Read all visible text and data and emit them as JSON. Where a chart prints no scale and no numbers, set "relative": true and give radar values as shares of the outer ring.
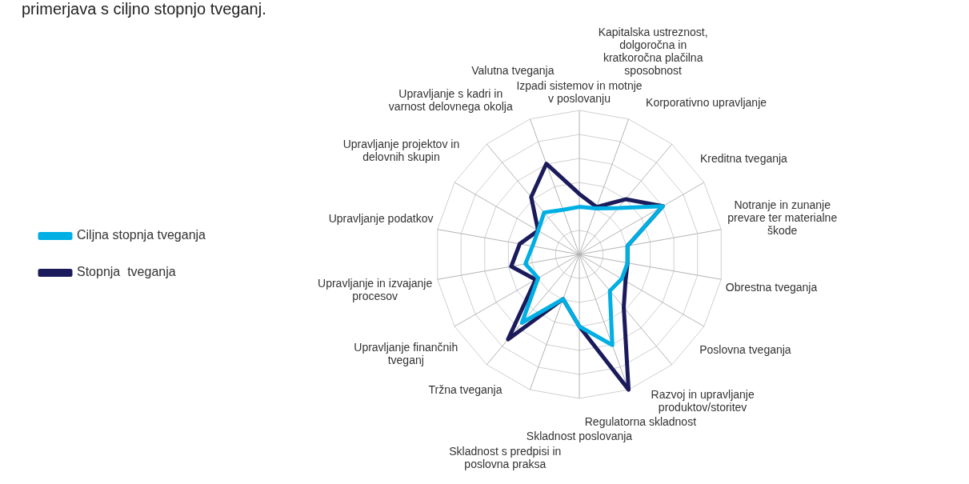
{
  "chart_data": {
    "type": "radar",
    "title": "primerjava s ciljno stopnjo tveganj.",
    "relative": true,
    "legend": "left",
    "grid": true,
    "marker": "none",
    "categories": [
      "Izpadi sistemov in motnje v poslovanju",
      "Kapitalska ustreznost, dolgoročna in kratkoročna plačilna sposobnost",
      "Korporativno upravljanje",
      "Kreditna tveganja",
      "Notranje in zunanje prevare ter materialne škode",
      "Obrestna tveganja",
      "Poslovna tveganja",
      "Razvoj in upravljanje produktov/storitev",
      "Regulatorna skladnost",
      "Skladnost poslovanja",
      "Skladnost s predpisi in poslovna praksa",
      "Tržna tveganja",
      "Upravljanje finančnih tveganj",
      "Upravljanje in izvajanje procesov",
      "Upravljanje podatkov",
      "Upravljanje projektov in delovnih skupin",
      "Upravljanje s kadri in varnost delovnega okolja",
      "Valutna tveganja"
    ],
    "series": [
      {
        "name": "Ciljna stopnja tveganja",
        "color": "#00afe3",
        "values": [
          0.33,
          0.34,
          0.42,
          0.67,
          0.34,
          0.34,
          0.34,
          0.33,
          0.67,
          0.5,
          0.33,
          0.62,
          0.33,
          0.38,
          0.33,
          0.33,
          0.38,
          0.33
        ]
      },
      {
        "name": "Stopnja  tveganja",
        "color": "#1b1b5c",
        "values": [
          0.42,
          0.35,
          0.5,
          0.67,
          0.34,
          0.34,
          0.37,
          0.48,
          1,
          0.5,
          0.33,
          0.77,
          0.35,
          0.48,
          0.42,
          0.33,
          0.52,
          0.67
        ]
      }
    ]
  }
}
